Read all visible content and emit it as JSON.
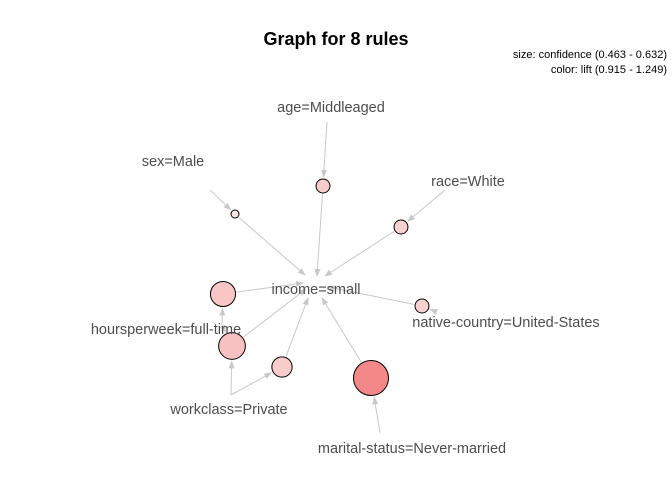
{
  "title": "Graph for 8 rules",
  "legend": {
    "size_text": "size: confidence (0.463 - 0.632)",
    "color_text": "color: lift (0.915 - 1.249)"
  },
  "colors": {
    "edge": "#c8c8c8",
    "label": "#4d4d4d",
    "rule_low": "#fbe3e3",
    "rule_high": "#f48888"
  },
  "items": {
    "income": "income=small",
    "age": "age=Middleaged",
    "sex": "sex=Male",
    "race": "race=White",
    "hours": "hoursperweek=full-time",
    "native": "native-country=United-States",
    "workclass": "workclass=Private",
    "marital": "marital-status=Never-married"
  },
  "rules": [
    {
      "lhs": [
        "age"
      ],
      "rhs": "income",
      "confidence": 0.5,
      "lift": 1.0
    },
    {
      "lhs": [
        "sex"
      ],
      "rhs": "income",
      "confidence": 0.463,
      "lift": 0.915
    },
    {
      "lhs": [
        "race"
      ],
      "rhs": "income",
      "confidence": 0.5,
      "lift": 0.98
    },
    {
      "lhs": [
        "hours"
      ],
      "rhs": "income",
      "confidence": 0.57,
      "lift": 1.02
    },
    {
      "lhs": [
        "hours",
        "workclass"
      ],
      "rhs": "income",
      "confidence": 0.58,
      "lift": 1.04
    },
    {
      "lhs": [
        "workclass"
      ],
      "rhs": "income",
      "confidence": 0.54,
      "lift": 1.0
    },
    {
      "lhs": [
        "native"
      ],
      "rhs": "income",
      "confidence": 0.5,
      "lift": 0.98
    },
    {
      "lhs": [
        "marital"
      ],
      "rhs": "income",
      "confidence": 0.632,
      "lift": 1.249
    }
  ]
}
